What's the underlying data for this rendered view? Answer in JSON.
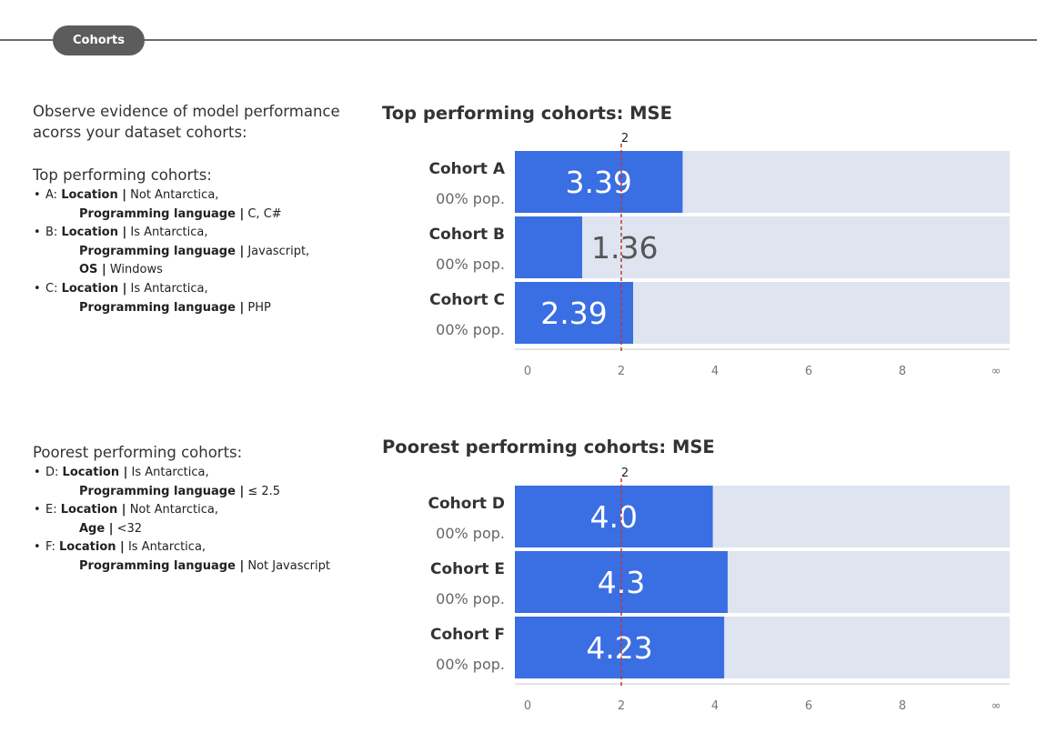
{
  "header": {
    "tab_label": "Cohorts"
  },
  "intro": {
    "text": "Observe evidence of model performance acorss your dataset cohorts:"
  },
  "top_list": {
    "heading": "Top performing cohorts:",
    "items": [
      {
        "prefix": "A: ",
        "conditions": [
          {
            "key": "Location |",
            "value": " Not Antarctica,"
          },
          {
            "key": "Programming language |",
            "value": " C, C#"
          }
        ]
      },
      {
        "prefix": "B: ",
        "conditions": [
          {
            "key": "Location |",
            "value": " Is Antarctica,"
          },
          {
            "key": "Programming language |",
            "value": " Javascript,"
          },
          {
            "key": "OS |",
            "value": " Windows"
          }
        ]
      },
      {
        "prefix": "C: ",
        "conditions": [
          {
            "key": "Location |",
            "value": " Is Antarctica,"
          },
          {
            "key": "Programming language |",
            "value": " PHP"
          }
        ]
      }
    ]
  },
  "poor_list": {
    "heading": "Poorest performing cohorts:",
    "items": [
      {
        "prefix": "D: ",
        "conditions": [
          {
            "key": "Location |",
            "value": " Is Antarctica,"
          },
          {
            "key": "Programming language |",
            "value": " ≤ 2.5"
          }
        ]
      },
      {
        "prefix": "E: ",
        "conditions": [
          {
            "key": "Location |",
            "value": " Not Antarctica,"
          },
          {
            "key": "Age |",
            "value": " <32"
          }
        ]
      },
      {
        "prefix": "F: ",
        "conditions": [
          {
            "key": "Location |",
            "value": " Is Antarctica,"
          },
          {
            "key": "Programming language |",
            "value": " Not Javascript"
          }
        ]
      }
    ]
  },
  "chart_data": [
    {
      "type": "bar",
      "orientation": "horizontal",
      "title": "Top performing cohorts: MSE",
      "categories": [
        "Cohort A",
        "Cohort B",
        "Cohort C"
      ],
      "sublabels": [
        "00% pop.",
        "00% pop.",
        "00% pop."
      ],
      "values": [
        3.39,
        1.36,
        2.39
      ],
      "value_labels": [
        "3.39",
        "1.36",
        "2.39"
      ],
      "xlim": [
        0,
        10
      ],
      "x_ticks": [
        "0",
        "2",
        "4",
        "6",
        "8",
        "∞"
      ],
      "reference_line": {
        "value": 2,
        "label": "2"
      },
      "colors": {
        "bar": "#3a6ee3",
        "background": "#dee4f0",
        "reference": "#c0392b",
        "label_on_bar": "#ffffff",
        "label_off_bar": "#555555"
      }
    },
    {
      "type": "bar",
      "orientation": "horizontal",
      "title": "Poorest performing cohorts: MSE",
      "categories": [
        "Cohort D",
        "Cohort E",
        "Cohort F"
      ],
      "sublabels": [
        "00% pop.",
        "00% pop.",
        "00% pop."
      ],
      "values": [
        4.0,
        4.3,
        4.23
      ],
      "value_labels": [
        "4.0",
        "4.3",
        "4.23"
      ],
      "xlim": [
        0,
        10
      ],
      "x_ticks": [
        "0",
        "2",
        "4",
        "6",
        "8",
        "∞"
      ],
      "reference_line": {
        "value": 2,
        "label": "2"
      },
      "colors": {
        "bar": "#3a6ee3",
        "background": "#dee4f0",
        "reference": "#c0392b",
        "label_on_bar": "#ffffff",
        "label_off_bar": "#555555"
      }
    }
  ]
}
